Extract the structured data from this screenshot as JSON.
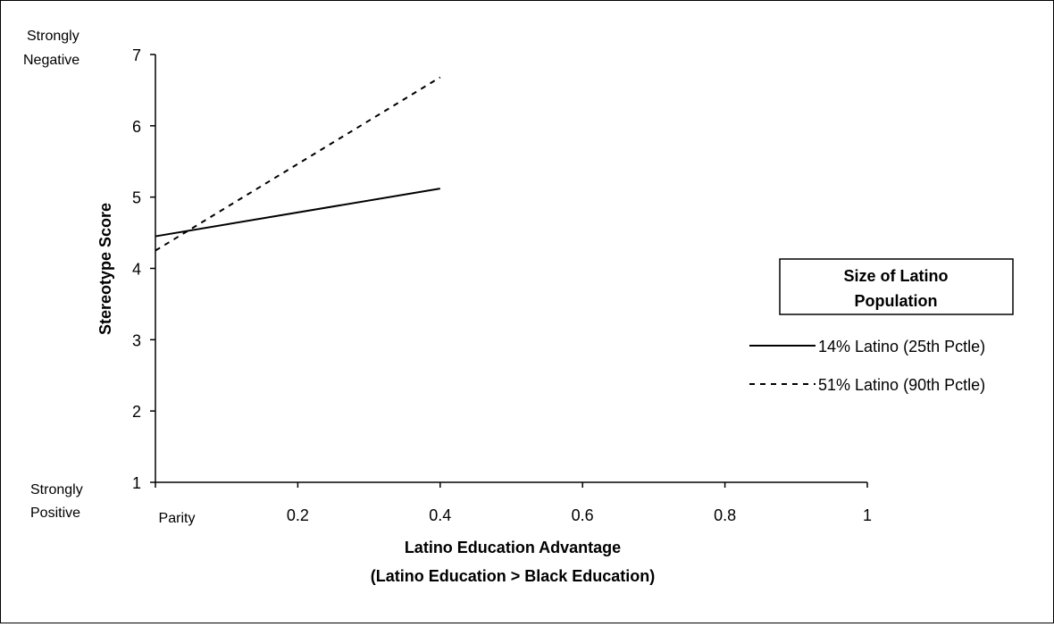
{
  "chart_data": {
    "type": "line",
    "title": "",
    "xlabel": "Latino Education Advantage",
    "xlabel_sub": "(Latino Education > Black Education)",
    "ylabel": "Stereotype Score",
    "xlim": [
      0,
      1
    ],
    "ylim": [
      1,
      7
    ],
    "x_ticks": [
      0,
      0.2,
      0.4,
      0.6,
      0.8,
      1
    ],
    "x_tick_labels": [
      "Parity",
      "0.2",
      "0.4",
      "0.6",
      "0.8",
      "1"
    ],
    "y_ticks": [
      1,
      2,
      3,
      4,
      5,
      6,
      7
    ],
    "y_tick_labels": [
      "1",
      "2",
      "3",
      "4",
      "5",
      "6",
      "7"
    ],
    "y_top_label": [
      "Strongly",
      "Negative"
    ],
    "y_bottom_label": [
      "Strongly",
      "Positive"
    ],
    "grid": false,
    "legend": {
      "title_lines": [
        "Size of Latino",
        "Population"
      ],
      "placement": "right"
    },
    "series": [
      {
        "name": "14% Latino (25th Pctle)",
        "style": "solid",
        "color": "#000000",
        "x": [
          0,
          0.4
        ],
        "y": [
          4.45,
          5.12
        ]
      },
      {
        "name": "51% Latino (90th Pctle)",
        "style": "dashed",
        "color": "#000000",
        "x": [
          0,
          0.4
        ],
        "y": [
          4.25,
          6.68
        ]
      }
    ]
  }
}
